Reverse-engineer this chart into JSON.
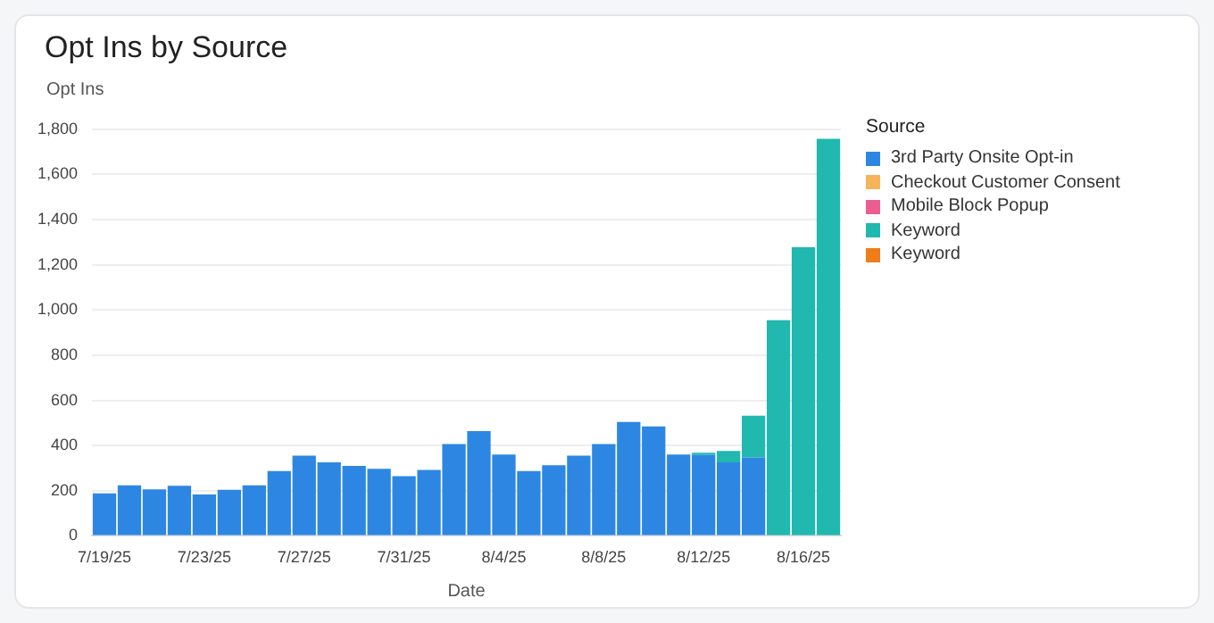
{
  "chart_data": {
    "type": "bar",
    "title": "Opt Ins by Source",
    "ylabel": "Opt Ins",
    "xlabel": "Date",
    "legend_title": "Source",
    "stacked": true,
    "legend": "right",
    "grid": "y",
    "categories": [
      "7/19/25",
      null,
      null,
      null,
      "7/23/25",
      null,
      null,
      null,
      "7/27/25",
      null,
      null,
      null,
      "7/31/25",
      null,
      null,
      null,
      "8/4/25",
      null,
      null,
      null,
      "8/8/25",
      null,
      null,
      null,
      "8/12/25",
      null,
      null,
      null,
      "8/16/25",
      null
    ],
    "ylim": [
      0,
      1800
    ],
    "yticks": [
      0,
      {
        "value": 200,
        "label": "200"
      },
      {
        "value": 400,
        "label": "400"
      },
      {
        "value": 600,
        "label": "600"
      },
      {
        "value": 800,
        "label": "800"
      },
      {
        "value": 1000,
        "label": "1,000"
      },
      {
        "value": 1200,
        "label": "1,200"
      },
      {
        "value": 1400,
        "label": "1,400"
      },
      {
        "value": 1600,
        "label": "1,600"
      },
      {
        "value": 1800,
        "label": "1,800"
      }
    ],
    "series": [
      {
        "name": "3rd Party Onsite Opt-in",
        "color": "#2d87e2",
        "values": [
          188,
          224,
          206,
          222,
          183,
          204,
          224,
          287,
          355,
          326,
          310,
          297,
          264,
          292,
          407,
          464,
          360,
          287,
          313,
          355,
          407,
          504,
          485,
          360,
          358,
          326,
          347,
          null,
          null,
          null
        ]
      },
      {
        "name": "Checkout Customer Consent",
        "color": "#f6b55b",
        "values": [
          null,
          null,
          null,
          null,
          null,
          null,
          null,
          null,
          null,
          null,
          null,
          null,
          null,
          null,
          null,
          null,
          null,
          null,
          null,
          null,
          null,
          null,
          null,
          null,
          null,
          null,
          null,
          null,
          null,
          null
        ]
      },
      {
        "name": "Mobile Block Popup",
        "color": "#ec5d8f",
        "values": [
          null,
          null,
          null,
          null,
          null,
          null,
          null,
          null,
          null,
          null,
          null,
          null,
          null,
          null,
          null,
          null,
          null,
          null,
          null,
          null,
          null,
          null,
          null,
          null,
          null,
          null,
          null,
          null,
          null,
          null
        ]
      },
      {
        "name": "Keyword",
        "color": "#21b8b0",
        "values": [
          null,
          null,
          null,
          null,
          null,
          null,
          null,
          null,
          null,
          null,
          null,
          null,
          null,
          null,
          null,
          null,
          null,
          null,
          null,
          null,
          null,
          null,
          null,
          null,
          10,
          50,
          185,
          955,
          1278,
          1758
        ]
      },
      {
        "name": "Keyword",
        "color": "#f07c1a",
        "values": [
          null,
          null,
          null,
          null,
          null,
          null,
          null,
          null,
          null,
          null,
          null,
          null,
          null,
          null,
          null,
          null,
          null,
          null,
          null,
          null,
          null,
          null,
          null,
          null,
          null,
          null,
          null,
          null,
          null,
          null
        ]
      }
    ]
  }
}
